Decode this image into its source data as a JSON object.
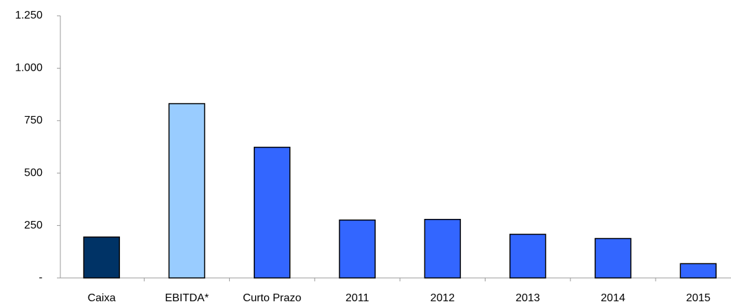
{
  "chart_data": {
    "type": "bar",
    "categories": [
      "Caixa",
      "EBITDA*",
      "Curto Prazo",
      "2011",
      "2012",
      "2013",
      "2014",
      "2015"
    ],
    "values": [
      195,
      831,
      623,
      276,
      279,
      208,
      188,
      68
    ],
    "colors": [
      "#003366",
      "#99ccff",
      "#3366ff",
      "#3366ff",
      "#3366ff",
      "#3366ff",
      "#3366ff",
      "#3366ff"
    ],
    "ylim": [
      0,
      1250
    ],
    "yticks": [
      {
        "value": 0,
        "label": "-"
      },
      250,
      500,
      750,
      {
        "value": 1000,
        "label": "1.000"
      },
      {
        "value": 1250,
        "label": "1.250"
      }
    ],
    "grid": false
  }
}
